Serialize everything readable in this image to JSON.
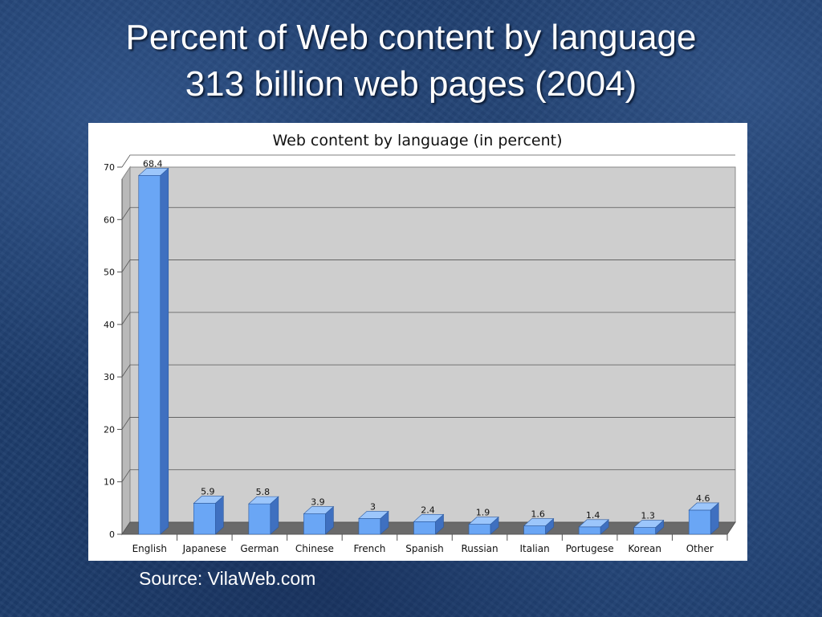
{
  "slide": {
    "title_line1": "Percent of Web content by language",
    "title_line2": "313 billion web pages (2004)",
    "source": "Source: VilaWeb.com"
  },
  "chart_data": {
    "type": "bar",
    "title": "Web content by language (in percent)",
    "categories": [
      "English",
      "Japanese",
      "German",
      "Chinese",
      "French",
      "Spanish",
      "Russian",
      "Italian",
      "Portugese",
      "Korean",
      "Other"
    ],
    "values": [
      68.4,
      5.9,
      5.8,
      3.9,
      3,
      2.4,
      1.9,
      1.6,
      1.4,
      1.3,
      4.6
    ],
    "value_labels": [
      "68.4",
      "5.9",
      "5.8",
      "3.9",
      "3",
      "2.4",
      "1.9",
      "1.6",
      "1.4",
      "1.3",
      "4.6"
    ],
    "y_ticks": [
      "0",
      "10",
      "20",
      "30",
      "40",
      "50",
      "60",
      "70"
    ],
    "ylim": [
      0,
      70
    ],
    "grid": true,
    "legend": "none",
    "colors": {
      "bar_front": "#6aa6f5",
      "bar_side": "#3f70c0",
      "bar_top": "#9cc6fb",
      "plot_bg": "#cecece",
      "plot_side": "#b9b9b9",
      "floor": "#6a6a6a"
    }
  }
}
